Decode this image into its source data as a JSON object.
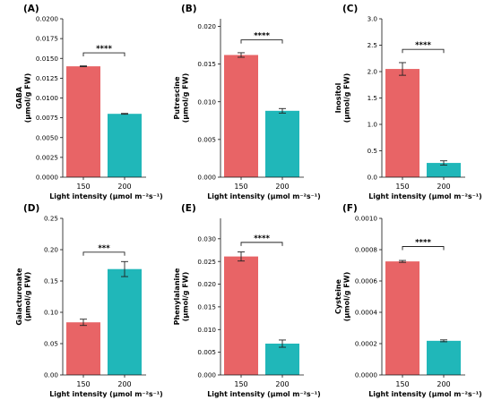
{
  "colors": {
    "bar_150": "#e86466",
    "bar_200": "#20b7b9",
    "axis": "#111111"
  },
  "chart_data": [
    {
      "type": "bar",
      "panel_label": "(A)",
      "ylabel": [
        "GABA",
        "(μmol/g FW)"
      ],
      "xlabel": "Light intensity (μmol m⁻²s⁻¹)",
      "categories": [
        "150",
        "200"
      ],
      "values": [
        0.014,
        0.008
      ],
      "errors": [
        5e-05,
        5e-05
      ],
      "ylim": [
        0,
        0.02
      ],
      "yticks": [
        0,
        0.0025,
        0.005,
        0.0075,
        0.01,
        0.0125,
        0.015,
        0.0175,
        0.02
      ],
      "ytick_labels": [
        "0.0000",
        "0.0025",
        "0.0050",
        "0.0075",
        "0.0100",
        "0.0125",
        "0.0150",
        "0.0175",
        "0.0200"
      ],
      "significance": "****",
      "sig_level": 0.0157
    },
    {
      "type": "bar",
      "panel_label": "(B)",
      "ylabel": [
        "Putrescine",
        "(μmol/g FW)"
      ],
      "xlabel": "Light intensity (μmol m⁻²s⁻¹)",
      "categories": [
        "150",
        "200"
      ],
      "values": [
        0.0162,
        0.0088
      ],
      "errors": [
        0.0003,
        0.0003
      ],
      "ylim": [
        0,
        0.021
      ],
      "yticks": [
        0,
        0.005,
        0.01,
        0.015,
        0.02
      ],
      "ytick_labels": [
        "0.000",
        "0.005",
        "0.010",
        "0.015",
        "0.020"
      ],
      "significance": "****",
      "sig_level": 0.0182
    },
    {
      "type": "bar",
      "panel_label": "(C)",
      "ylabel": [
        "Inositol",
        "(μmol/g FW)"
      ],
      "xlabel": "Light intensity (μmol m⁻²s⁻¹)",
      "categories": [
        "150",
        "200"
      ],
      "values": [
        2.05,
        0.27
      ],
      "errors": [
        0.12,
        0.04
      ],
      "ylim": [
        0,
        3.0
      ],
      "yticks": [
        0,
        0.5,
        1.0,
        1.5,
        2.0,
        2.5,
        3.0
      ],
      "ytick_labels": [
        "0.0",
        "0.5",
        "1.0",
        "1.5",
        "2.0",
        "2.5",
        "3.0"
      ],
      "significance": "****",
      "sig_level": 2.42
    },
    {
      "type": "bar",
      "panel_label": "(D)",
      "ylabel": [
        "Galacturonate",
        "(μmol/g FW)"
      ],
      "xlabel": "Light intensity (μmol m⁻²s⁻¹)",
      "categories": [
        "150",
        "200"
      ],
      "values": [
        0.084,
        0.169
      ],
      "errors": [
        0.005,
        0.012
      ],
      "ylim": [
        0,
        0.25
      ],
      "yticks": [
        0,
        0.05,
        0.1,
        0.15,
        0.2,
        0.25
      ],
      "ytick_labels": [
        "0.00",
        "0.05",
        "0.10",
        "0.15",
        "0.20",
        "0.25"
      ],
      "significance": "***",
      "sig_level": 0.196
    },
    {
      "type": "bar",
      "panel_label": "(E)",
      "ylabel": [
        "Phenylalanine",
        "(μmol/g FW)"
      ],
      "xlabel": "Light intensity (μmol m⁻²s⁻¹)",
      "categories": [
        "150",
        "200"
      ],
      "values": [
        0.0261,
        0.0069
      ],
      "errors": [
        0.001,
        0.0008
      ],
      "ylim": [
        0,
        0.0345
      ],
      "yticks": [
        0,
        0.005,
        0.01,
        0.015,
        0.02,
        0.025,
        0.03
      ],
      "ytick_labels": [
        "0.000",
        "0.005",
        "0.010",
        "0.015",
        "0.020",
        "0.025",
        "0.030"
      ],
      "significance": "****",
      "sig_level": 0.0292
    },
    {
      "type": "bar",
      "panel_label": "(F)",
      "ylabel": [
        "Cysteine",
        "(μmol/g FW)"
      ],
      "xlabel": "Light intensity (μmol m⁻²s⁻¹)",
      "categories": [
        "150",
        "200"
      ],
      "values": [
        0.000725,
        0.000218
      ],
      "errors": [
        6e-06,
        6e-06
      ],
      "ylim": [
        0,
        0.001
      ],
      "yticks": [
        0,
        0.0002,
        0.0004,
        0.0006,
        0.0008,
        0.001
      ],
      "ytick_labels": [
        "0.0000",
        "0.0002",
        "0.0004",
        "0.0006",
        "0.0008",
        "0.0010"
      ],
      "significance": "****",
      "sig_level": 0.00082
    }
  ]
}
